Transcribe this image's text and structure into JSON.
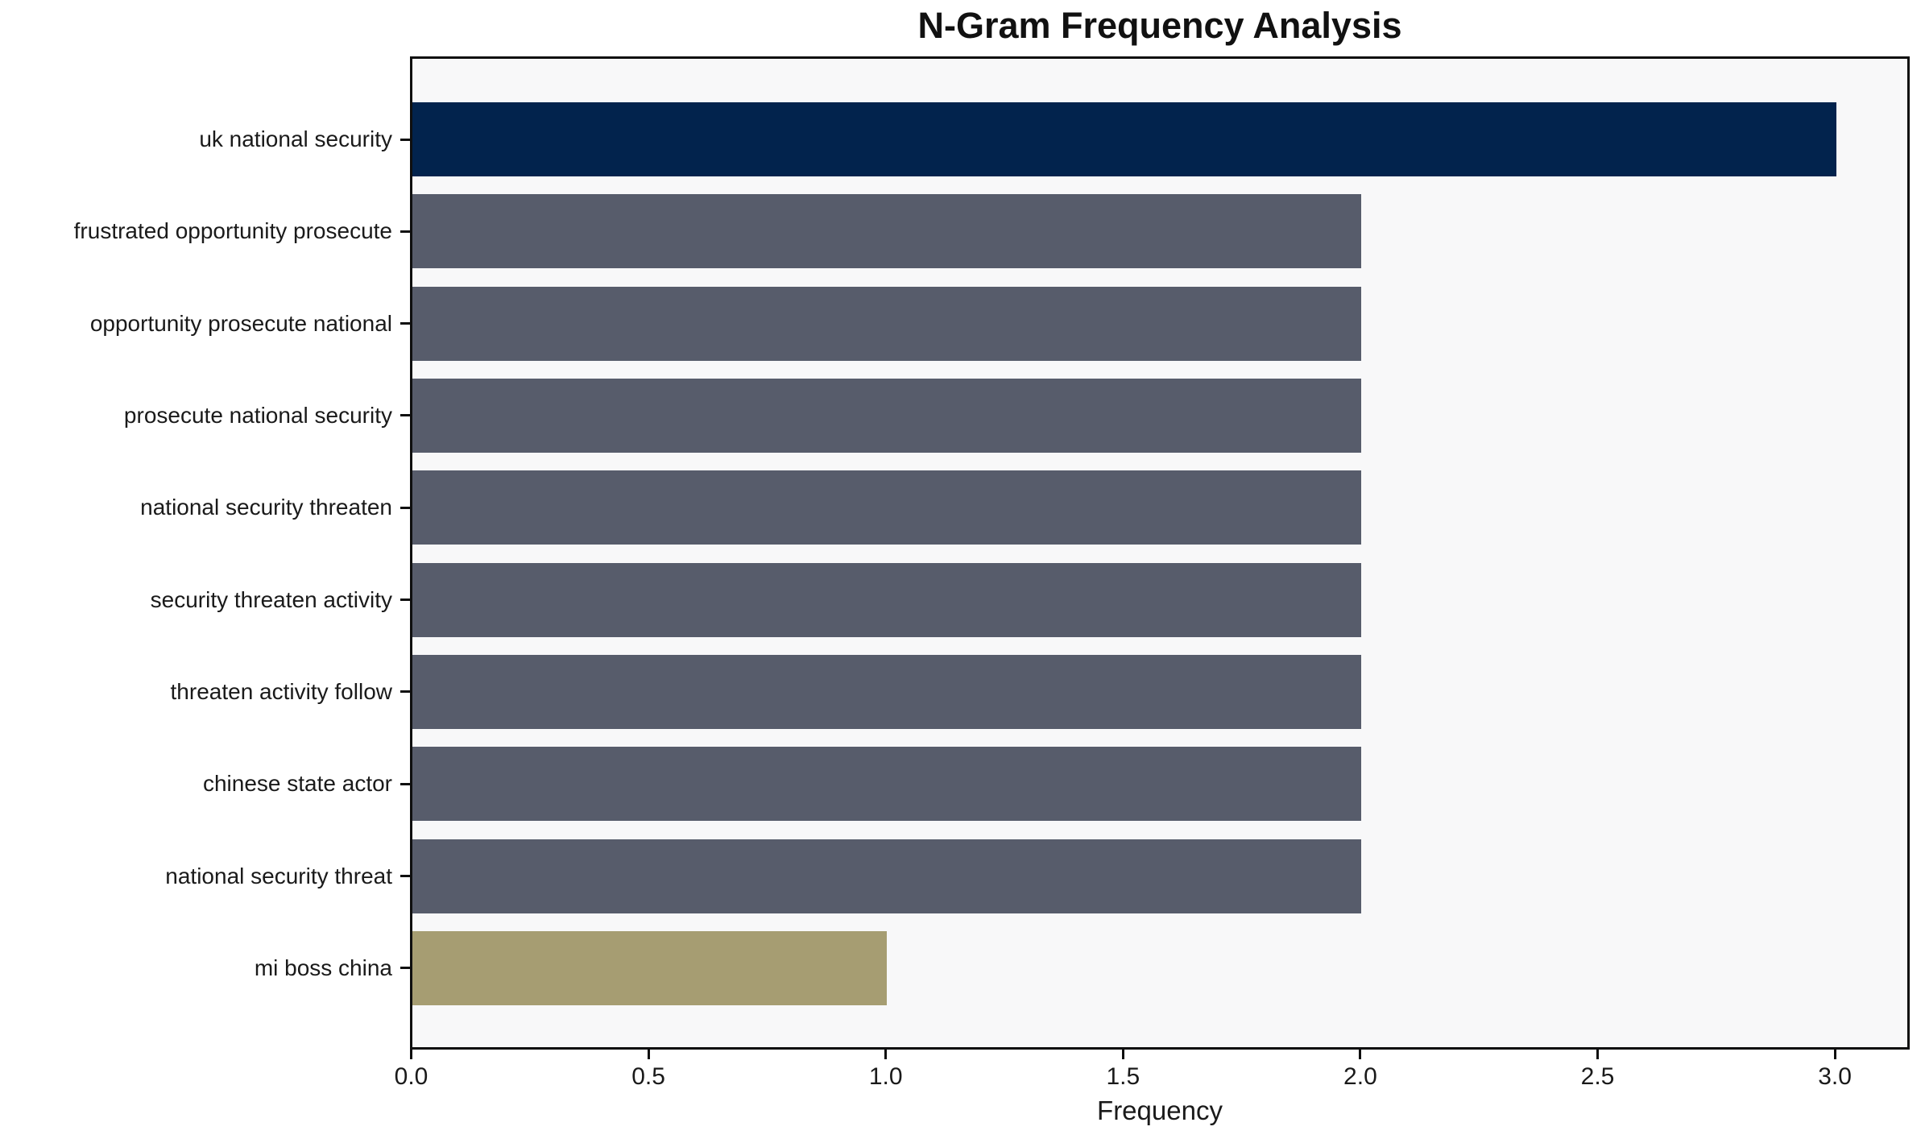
{
  "chart_data": {
    "type": "bar",
    "orientation": "horizontal",
    "title": "N-Gram Frequency Analysis",
    "xlabel": "Frequency",
    "ylabel": "",
    "categories": [
      "uk national security",
      "frustrated opportunity prosecute",
      "opportunity prosecute national",
      "prosecute national security",
      "national security threaten",
      "security threaten activity",
      "threaten activity follow",
      "chinese state actor",
      "national security threat",
      "mi boss china"
    ],
    "values": [
      3,
      2,
      2,
      2,
      2,
      2,
      2,
      2,
      2,
      1
    ],
    "bar_colors": [
      "#02234d",
      "#575c6b",
      "#575c6b",
      "#575c6b",
      "#575c6b",
      "#575c6b",
      "#575c6b",
      "#575c6b",
      "#575c6b",
      "#a69d72"
    ],
    "xticks": [
      0.0,
      0.5,
      1.0,
      1.5,
      2.0,
      2.5,
      3.0
    ],
    "xtick_labels": [
      "0.0",
      "0.5",
      "1.0",
      "1.5",
      "2.0",
      "2.5",
      "3.0"
    ],
    "xlim": [
      0,
      3.15
    ],
    "grid": false,
    "legend": null,
    "colors": {
      "highlight_max": "#02234d",
      "neutral": "#575c6b",
      "highlight_min": "#a69d72",
      "plot_background": "#f8f8f9",
      "figure_background": "#ffffff",
      "spine": "#0f0f0f"
    }
  }
}
